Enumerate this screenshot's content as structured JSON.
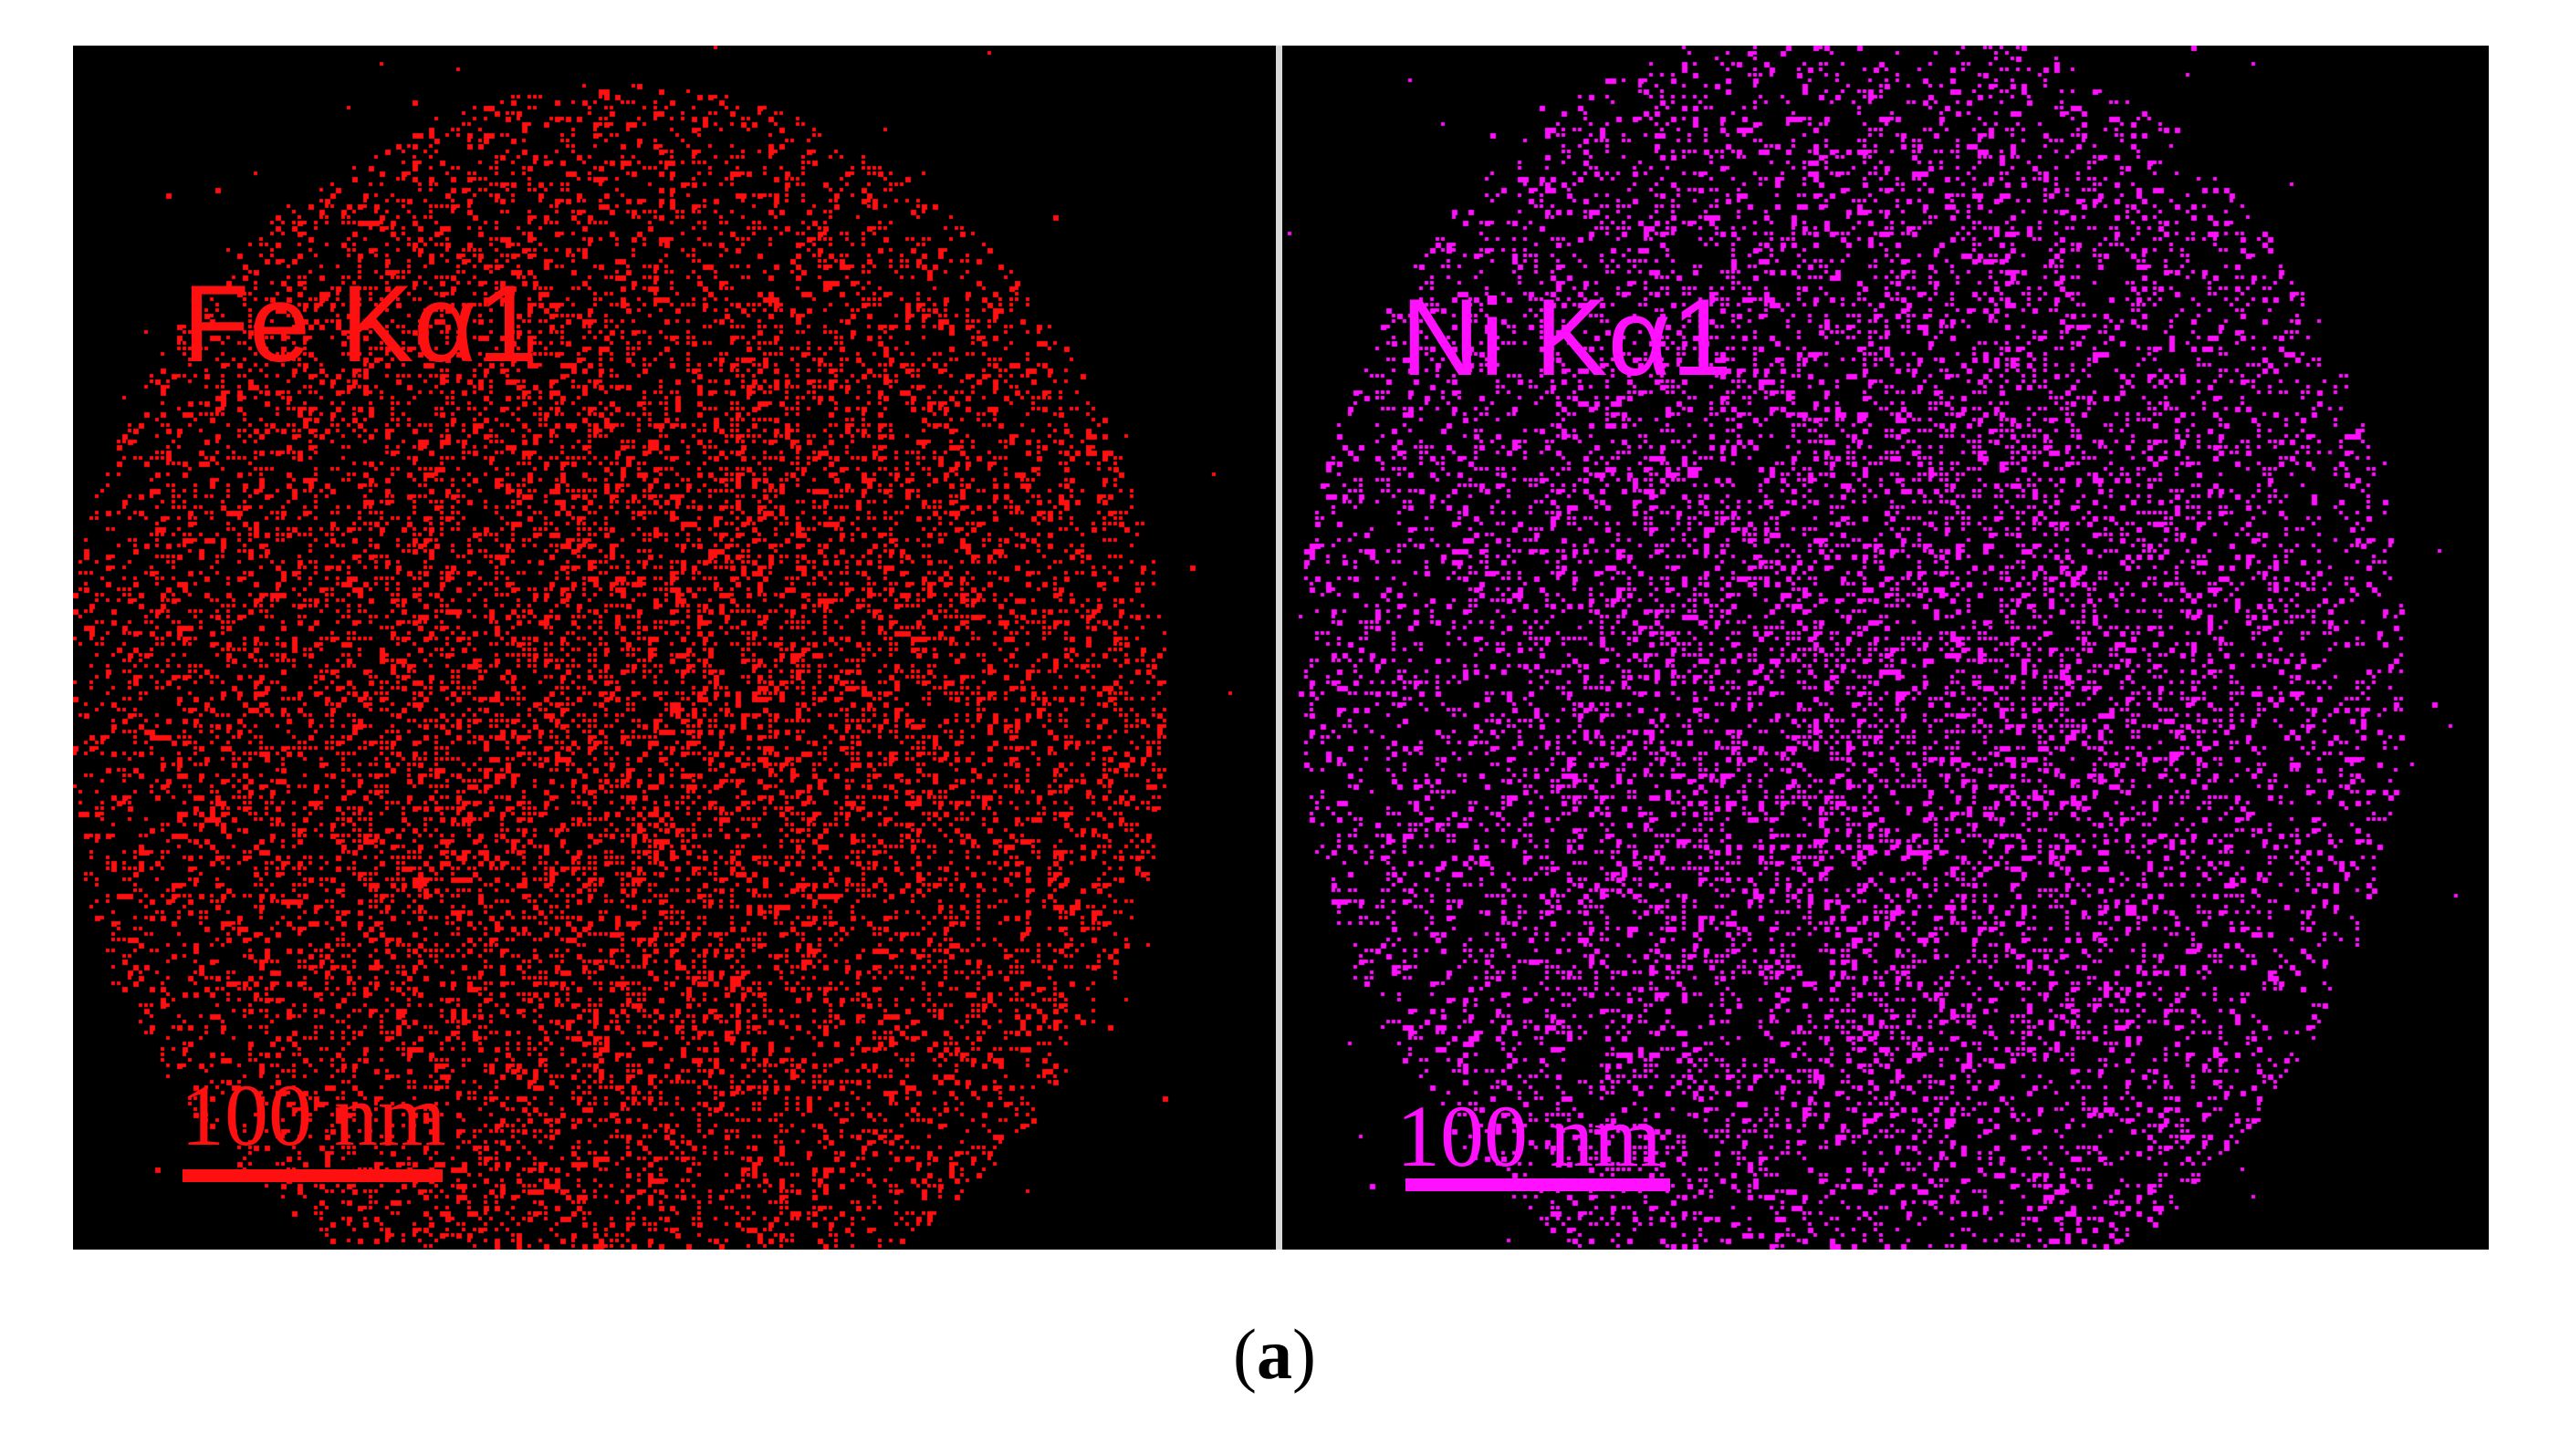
{
  "panels": [
    {
      "label": "Fe Kα1",
      "color": "#ff1010",
      "scale_bar": "100 nm"
    },
    {
      "label": "Ni Kα1",
      "color": "#ff10ff",
      "scale_bar": "100 nm"
    }
  ],
  "caption": {
    "open": "(",
    "letter": "a",
    "close": ")"
  },
  "colors": {
    "background": "#000000",
    "divider": "#d8d8d8",
    "page": "#ffffff"
  }
}
